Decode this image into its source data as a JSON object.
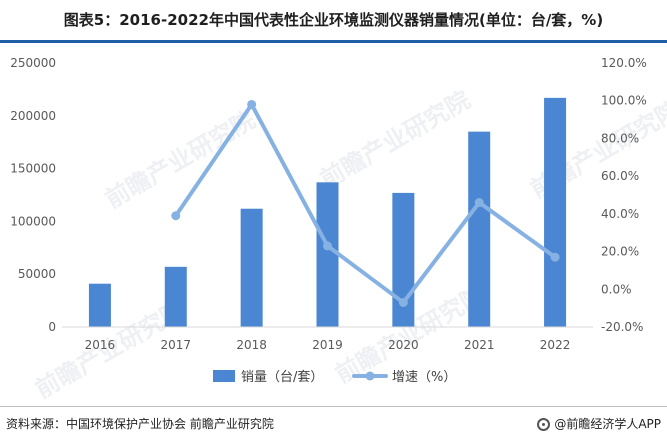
{
  "title": "图表5：2016-2022年中国代表性企业环境监测仪器销量情况(单位：台/套，%)",
  "watermark": "前瞻产业研究院",
  "footer": {
    "source": "资料来源：中国环境保护产业协会 前瞻产业研究院",
    "brand": "@前瞻经济学人APP"
  },
  "colors": {
    "bar": "#4a86d1",
    "line": "#86b1e3",
    "title_rule": "#1f5fa8"
  },
  "chart_data": {
    "type": "bar",
    "categories": [
      "2016",
      "2017",
      "2018",
      "2019",
      "2020",
      "2021",
      "2022"
    ],
    "series": [
      {
        "name": "销量（台/套）",
        "type": "bar",
        "axis": "left",
        "values": [
          41000,
          57000,
          112000,
          137000,
          127000,
          185000,
          217000
        ]
      },
      {
        "name": "增速（%）",
        "type": "line",
        "axis": "right",
        "values": [
          null,
          39.0,
          98.0,
          23.0,
          -7.0,
          46.0,
          17.0
        ]
      }
    ],
    "y_left": {
      "min": 0,
      "max": 250000,
      "ticks": [
        "0",
        "50000",
        "100000",
        "150000",
        "200000",
        "250000"
      ]
    },
    "y_right": {
      "min": -20,
      "max": 120,
      "ticks": [
        "-20.0%",
        "0.0%",
        "20.0%",
        "40.0%",
        "60.0%",
        "80.0%",
        "100.0%",
        "120.0%"
      ]
    },
    "legend_position": "bottom",
    "grid": false
  }
}
